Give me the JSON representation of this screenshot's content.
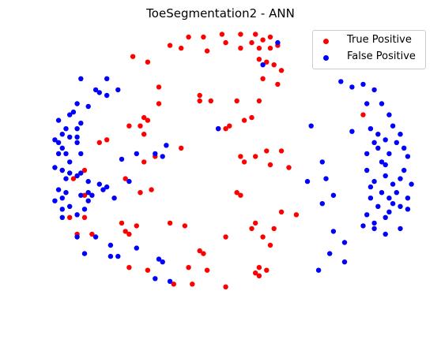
{
  "chart_data": {
    "type": "scatter",
    "title": "ToeSegmentation2 - ANN",
    "axes_visible": false,
    "legend_position": "top-right",
    "xlim": [
      0,
      1
    ],
    "ylim": [
      0,
      1
    ],
    "series": [
      {
        "name": "True Positive",
        "color": "#ff0000",
        "points": [
          [
            0.38,
            0.98
          ],
          [
            0.42,
            0.98
          ],
          [
            0.47,
            0.99
          ],
          [
            0.52,
            0.99
          ],
          [
            0.56,
            0.99
          ],
          [
            0.6,
            0.98
          ],
          [
            0.48,
            0.96
          ],
          [
            0.55,
            0.96
          ],
          [
            0.58,
            0.97
          ],
          [
            0.62,
            0.95
          ],
          [
            0.57,
            0.94
          ],
          [
            0.6,
            0.94
          ],
          [
            0.33,
            0.95
          ],
          [
            0.36,
            0.94
          ],
          [
            0.43,
            0.93
          ],
          [
            0.52,
            0.94
          ],
          [
            0.57,
            0.9
          ],
          [
            0.59,
            0.89
          ],
          [
            0.63,
            0.86
          ],
          [
            0.23,
            0.91
          ],
          [
            0.27,
            0.89
          ],
          [
            0.61,
            0.88
          ],
          [
            0.58,
            0.83
          ],
          [
            0.62,
            0.81
          ],
          [
            0.3,
            0.8
          ],
          [
            0.41,
            0.77
          ],
          [
            0.41,
            0.75
          ],
          [
            0.44,
            0.75
          ],
          [
            0.51,
            0.75
          ],
          [
            0.57,
            0.75
          ],
          [
            0.49,
            0.66
          ],
          [
            0.46,
            0.65
          ],
          [
            0.48,
            0.65
          ],
          [
            0.53,
            0.68
          ],
          [
            0.55,
            0.69
          ],
          [
            0.26,
            0.69
          ],
          [
            0.27,
            0.68
          ],
          [
            0.22,
            0.66
          ],
          [
            0.25,
            0.66
          ],
          [
            0.16,
            0.61
          ],
          [
            0.14,
            0.6
          ],
          [
            0.26,
            0.63
          ],
          [
            0.36,
            0.58
          ],
          [
            0.29,
            0.55
          ],
          [
            0.52,
            0.55
          ],
          [
            0.56,
            0.55
          ],
          [
            0.59,
            0.57
          ],
          [
            0.63,
            0.57
          ],
          [
            0.26,
            0.53
          ],
          [
            0.53,
            0.53
          ],
          [
            0.6,
            0.52
          ],
          [
            0.65,
            0.51
          ],
          [
            0.04,
            0.5
          ],
          [
            0.07,
            0.47
          ],
          [
            0.21,
            0.47
          ],
          [
            0.25,
            0.42
          ],
          [
            0.28,
            0.43
          ],
          [
            0.51,
            0.42
          ],
          [
            0.52,
            0.41
          ],
          [
            0.1,
            0.41
          ],
          [
            0.63,
            0.35
          ],
          [
            0.67,
            0.34
          ],
          [
            0.06,
            0.33
          ],
          [
            0.1,
            0.33
          ],
          [
            0.2,
            0.31
          ],
          [
            0.33,
            0.31
          ],
          [
            0.24,
            0.3
          ],
          [
            0.37,
            0.3
          ],
          [
            0.56,
            0.31
          ],
          [
            0.55,
            0.29
          ],
          [
            0.21,
            0.28
          ],
          [
            0.58,
            0.26
          ],
          [
            0.61,
            0.29
          ],
          [
            0.08,
            0.27
          ],
          [
            0.12,
            0.27
          ],
          [
            0.22,
            0.27
          ],
          [
            0.48,
            0.26
          ],
          [
            0.6,
            0.23
          ],
          [
            0.41,
            0.21
          ],
          [
            0.42,
            0.2
          ],
          [
            0.22,
            0.15
          ],
          [
            0.27,
            0.14
          ],
          [
            0.38,
            0.15
          ],
          [
            0.43,
            0.14
          ],
          [
            0.57,
            0.15
          ],
          [
            0.57,
            0.12
          ],
          [
            0.56,
            0.13
          ],
          [
            0.59,
            0.14
          ],
          [
            0.34,
            0.09
          ],
          [
            0.39,
            0.09
          ],
          [
            0.48,
            0.08
          ],
          [
            0.85,
            0.7
          ],
          [
            0.3,
            0.74
          ],
          [
            0.1,
            0.5
          ]
        ]
      },
      {
        "name": "False Positive",
        "color": "#0000ff",
        "points": [
          [
            0.62,
            0.96
          ],
          [
            0.58,
            0.88
          ],
          [
            0.16,
            0.83
          ],
          [
            0.14,
            0.78
          ],
          [
            0.16,
            0.77
          ],
          [
            0.19,
            0.79
          ],
          [
            0.09,
            0.83
          ],
          [
            0.13,
            0.79
          ],
          [
            0.06,
            0.7
          ],
          [
            0.08,
            0.74
          ],
          [
            0.11,
            0.73
          ],
          [
            0.07,
            0.71
          ],
          [
            0.03,
            0.68
          ],
          [
            0.05,
            0.65
          ],
          [
            0.08,
            0.65
          ],
          [
            0.09,
            0.67
          ],
          [
            0.02,
            0.61
          ],
          [
            0.04,
            0.63
          ],
          [
            0.03,
            0.6
          ],
          [
            0.06,
            0.62
          ],
          [
            0.08,
            0.6
          ],
          [
            0.03,
            0.56
          ],
          [
            0.04,
            0.58
          ],
          [
            0.05,
            0.56
          ],
          [
            0.06,
            0.53
          ],
          [
            0.09,
            0.56
          ],
          [
            0.02,
            0.51
          ],
          [
            0.04,
            0.5
          ],
          [
            0.06,
            0.49
          ],
          [
            0.05,
            0.47
          ],
          [
            0.08,
            0.48
          ],
          [
            0.09,
            0.49
          ],
          [
            0.11,
            0.46
          ],
          [
            0.03,
            0.43
          ],
          [
            0.05,
            0.42
          ],
          [
            0.04,
            0.4
          ],
          [
            0.09,
            0.41
          ],
          [
            0.11,
            0.42
          ],
          [
            0.02,
            0.39
          ],
          [
            0.04,
            0.36
          ],
          [
            0.06,
            0.37
          ],
          [
            0.08,
            0.34
          ],
          [
            0.04,
            0.33
          ],
          [
            0.1,
            0.36
          ],
          [
            0.11,
            0.39
          ],
          [
            0.08,
            0.26
          ],
          [
            0.13,
            0.26
          ],
          [
            0.1,
            0.2
          ],
          [
            0.17,
            0.23
          ],
          [
            0.17,
            0.19
          ],
          [
            0.14,
            0.45
          ],
          [
            0.16,
            0.44
          ],
          [
            0.12,
            0.41
          ],
          [
            0.15,
            0.43
          ],
          [
            0.18,
            0.4
          ],
          [
            0.24,
            0.56
          ],
          [
            0.2,
            0.54
          ],
          [
            0.29,
            0.56
          ],
          [
            0.31,
            0.55
          ],
          [
            0.22,
            0.46
          ],
          [
            0.46,
            0.65
          ],
          [
            0.32,
            0.59
          ],
          [
            0.08,
            0.62
          ],
          [
            0.24,
            0.22
          ],
          [
            0.19,
            0.19
          ],
          [
            0.31,
            0.17
          ],
          [
            0.29,
            0.11
          ],
          [
            0.33,
            0.1
          ],
          [
            0.3,
            0.18
          ],
          [
            0.7,
            0.46
          ],
          [
            0.74,
            0.53
          ],
          [
            0.75,
            0.47
          ],
          [
            0.77,
            0.41
          ],
          [
            0.74,
            0.38
          ],
          [
            0.77,
            0.28
          ],
          [
            0.8,
            0.24
          ],
          [
            0.76,
            0.2
          ],
          [
            0.8,
            0.17
          ],
          [
            0.73,
            0.14
          ],
          [
            0.71,
            0.66
          ],
          [
            0.82,
            0.64
          ],
          [
            0.79,
            0.82
          ],
          [
            0.82,
            0.8
          ],
          [
            0.85,
            0.81
          ],
          [
            0.88,
            0.79
          ],
          [
            0.86,
            0.74
          ],
          [
            0.9,
            0.74
          ],
          [
            0.92,
            0.7
          ],
          [
            0.87,
            0.65
          ],
          [
            0.88,
            0.6
          ],
          [
            0.86,
            0.56
          ],
          [
            0.89,
            0.58
          ],
          [
            0.91,
            0.61
          ],
          [
            0.9,
            0.53
          ],
          [
            0.86,
            0.5
          ],
          [
            0.88,
            0.46
          ],
          [
            0.91,
            0.48
          ],
          [
            0.93,
            0.45
          ],
          [
            0.95,
            0.47
          ],
          [
            0.96,
            0.5
          ],
          [
            0.94,
            0.42
          ],
          [
            0.92,
            0.4
          ],
          [
            0.9,
            0.42
          ],
          [
            0.87,
            0.4
          ],
          [
            0.89,
            0.37
          ],
          [
            0.92,
            0.35
          ],
          [
            0.86,
            0.34
          ],
          [
            0.88,
            0.31
          ],
          [
            0.91,
            0.33
          ],
          [
            0.95,
            0.37
          ],
          [
            0.97,
            0.4
          ],
          [
            0.98,
            0.45
          ],
          [
            0.97,
            0.55
          ],
          [
            0.96,
            0.58
          ],
          [
            0.94,
            0.6
          ],
          [
            0.95,
            0.63
          ],
          [
            0.93,
            0.66
          ],
          [
            0.92,
            0.56
          ],
          [
            0.91,
            0.52
          ],
          [
            0.89,
            0.63
          ],
          [
            0.87,
            0.44
          ],
          [
            0.93,
            0.38
          ],
          [
            0.85,
            0.3
          ],
          [
            0.88,
            0.29
          ],
          [
            0.91,
            0.27
          ],
          [
            0.95,
            0.29
          ],
          [
            0.97,
            0.36
          ]
        ]
      }
    ]
  }
}
